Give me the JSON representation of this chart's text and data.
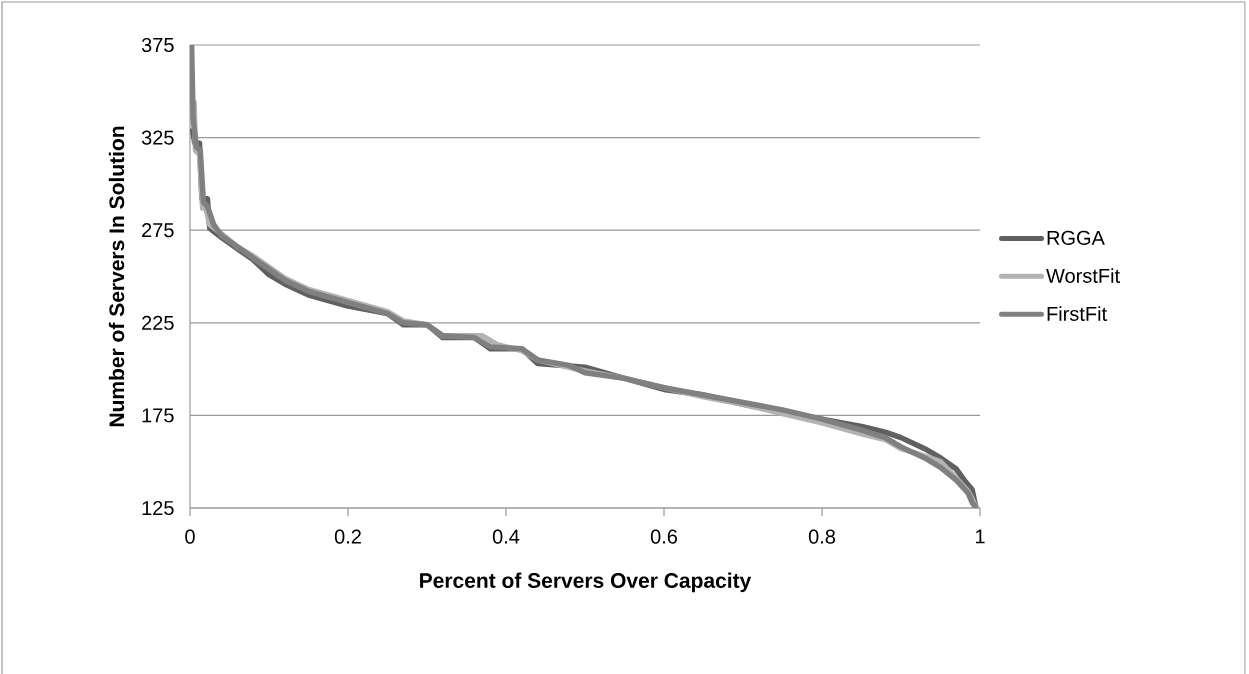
{
  "chart_data": {
    "type": "line",
    "xlabel": "Percent of Servers Over Capacity",
    "ylabel": "Number of Servers In Solution",
    "xlim": [
      0,
      1
    ],
    "ylim": [
      125,
      375
    ],
    "xticks": [
      0,
      0.2,
      0.4,
      0.6,
      0.8,
      1
    ],
    "yticks": [
      125,
      175,
      225,
      275,
      325,
      375
    ],
    "grid": "y",
    "legend": "right",
    "marker": "none",
    "line_style": "solid",
    "series": [
      {
        "name": "RGGA",
        "color": "#606060",
        "x": [
          0.003,
          0.006,
          0.012,
          0.015,
          0.022,
          0.025,
          0.04,
          0.06,
          0.08,
          0.1,
          0.12,
          0.15,
          0.2,
          0.25,
          0.27,
          0.3,
          0.32,
          0.36,
          0.38,
          0.42,
          0.44,
          0.5,
          0.55,
          0.6,
          0.65,
          0.7,
          0.75,
          0.8,
          0.85,
          0.88,
          0.9,
          0.93,
          0.95,
          0.97,
          0.98,
          0.99,
          0.995
        ],
        "values": [
          330,
          322,
          322,
          292,
          292,
          276,
          271,
          265,
          259,
          251,
          246,
          240,
          234,
          230,
          224,
          224,
          217,
          217,
          211,
          211,
          203,
          201,
          195,
          189,
          186,
          181,
          177,
          173,
          169,
          166,
          163,
          157,
          152,
          146,
          140,
          135,
          125
        ]
      },
      {
        "name": "WorstFit",
        "color": "#b3b3b3",
        "x": [
          0.005,
          0.007,
          0.012,
          0.016,
          0.02,
          0.025,
          0.04,
          0.06,
          0.08,
          0.1,
          0.12,
          0.15,
          0.2,
          0.25,
          0.27,
          0.3,
          0.32,
          0.37,
          0.39,
          0.42,
          0.44,
          0.5,
          0.55,
          0.6,
          0.65,
          0.7,
          0.75,
          0.8,
          0.85,
          0.88,
          0.9,
          0.93,
          0.95,
          0.97,
          0.985,
          0.99,
          0.995
        ],
        "values": [
          345,
          318,
          316,
          287,
          287,
          278,
          273,
          266,
          261,
          255,
          249,
          243,
          237,
          231,
          226,
          224,
          218,
          218,
          213,
          210,
          205,
          199,
          195,
          190,
          185,
          181,
          176,
          171,
          165,
          162,
          157,
          153,
          150,
          141,
          134,
          130,
          125
        ]
      },
      {
        "name": "FirstFit",
        "color": "#808080",
        "x": [
          0.002,
          0.004,
          0.008,
          0.013,
          0.017,
          0.022,
          0.03,
          0.04,
          0.06,
          0.08,
          0.1,
          0.12,
          0.15,
          0.2,
          0.25,
          0.27,
          0.3,
          0.32,
          0.36,
          0.38,
          0.42,
          0.44,
          0.48,
          0.5,
          0.55,
          0.6,
          0.65,
          0.7,
          0.75,
          0.8,
          0.85,
          0.88,
          0.9,
          0.93,
          0.95,
          0.97,
          0.985,
          0.99,
          0.995
        ],
        "values": [
          375,
          335,
          320,
          318,
          290,
          288,
          278,
          272,
          266,
          260,
          254,
          248,
          242,
          236,
          230,
          225,
          224,
          218,
          217,
          212,
          211,
          205,
          202,
          198,
          195,
          190,
          186,
          182,
          178,
          173,
          167,
          163,
          158,
          152,
          147,
          140,
          133,
          128,
          125
        ]
      }
    ]
  }
}
